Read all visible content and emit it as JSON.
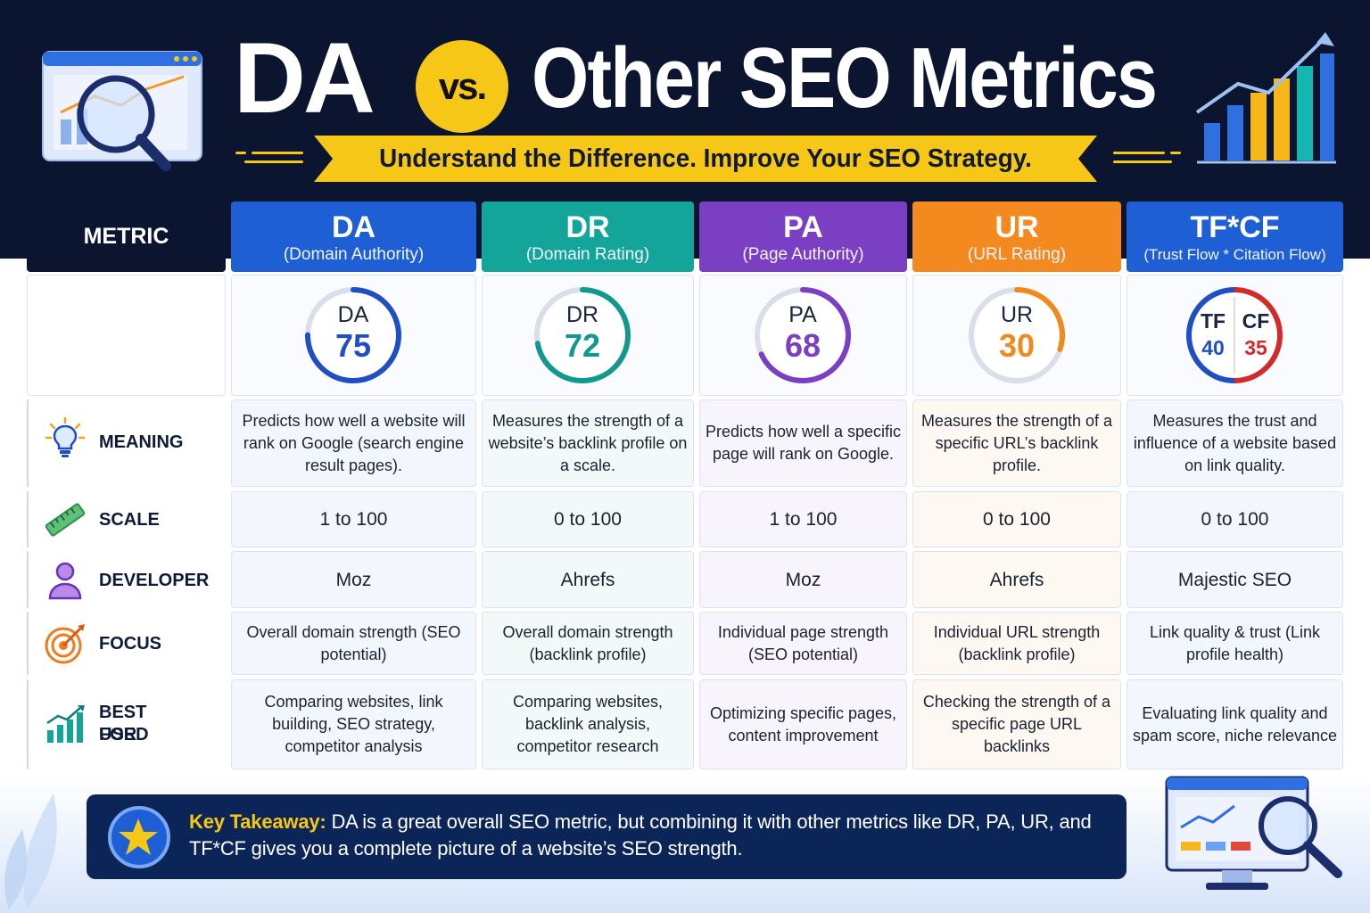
{
  "header": {
    "title_da": "DA",
    "title_vs": "vs.",
    "title_rest": "Other SEO Metrics",
    "subtitle": "Understand the Difference. Improve Your SEO Strategy."
  },
  "table": {
    "metric_header": "METRIC",
    "columns": [
      {
        "abbr": "DA",
        "full": "(Domain Authority)",
        "color": "#1f5fd6",
        "gauge_label": "DA",
        "gauge_value": "75",
        "gauge_color": "#1f4fc4"
      },
      {
        "abbr": "DR",
        "full": "(Domain Rating)",
        "color": "#13a59a",
        "gauge_label": "DR",
        "gauge_value": "72",
        "gauge_color": "#12998f"
      },
      {
        "abbr": "PA",
        "full": "(Page Authority)",
        "color": "#7b3fc3",
        "gauge_label": "PA",
        "gauge_value": "68",
        "gauge_color": "#7b3fc3"
      },
      {
        "abbr": "UR",
        "full": "(URL Rating)",
        "color": "#f48a1f",
        "gauge_label": "UR",
        "gauge_value": "30",
        "gauge_color": "#f08a1c"
      },
      {
        "abbr": "TF*CF",
        "full": "(Trust Flow * Citation Flow)",
        "color": "#1f5fd6",
        "tf_label": "TF",
        "tf_value": "40",
        "cf_label": "CF",
        "cf_value": "35",
        "tf_color": "#1f4fc4",
        "cf_color": "#d42a2a"
      }
    ],
    "rows": {
      "meaning": {
        "label": "MEANING",
        "cells": [
          "Predicts how well a website will rank on Google (search engine result pages).",
          "Measures the strength of a website’s backlink profile on a scale.",
          "Predicts how well a specific page will rank on Google.",
          "Measures the strength of a specific URL’s backlink profile.",
          "Measures the trust and influence of a website based on link quality."
        ]
      },
      "scale": {
        "label": "SCALE",
        "cells": [
          "1 to 100",
          "0 to 100",
          "1 to 100",
          "0 to 100",
          "0 to 100"
        ]
      },
      "developer": {
        "label": "DEVELOPER",
        "cells": [
          "Moz",
          "Ahrefs",
          "Moz",
          "Ahrefs",
          "Majestic SEO"
        ]
      },
      "focus": {
        "label": "FOCUS",
        "cells": [
          "Overall domain strength (SEO potential)",
          "Overall domain strength (backlink profile)",
          "Individual page strength (SEO potential)",
          "Individual URL strength (backlink profile)",
          "Link quality & trust (Link profile health)"
        ]
      },
      "best": {
        "label_1": "BEST USED",
        "label_2": "FOR",
        "cells": [
          "Comparing websites, link building, SEO strategy, competitor analysis",
          "Comparing websites, backlink analysis, competitor research",
          "Optimizing specific pages, content improvement",
          "Checking the strength of a specific page URL backlinks",
          "Evaluating link quality and spam score, niche relevance"
        ]
      }
    }
  },
  "takeaway": {
    "lead": "Key Takeaway:",
    "text": " DA is a great overall SEO metric, but combining it with other metrics like DR, PA, UR, and TF*CF gives you a complete picture of a website’s SEO strength."
  },
  "colors": {
    "navy": "#0b1530",
    "yellow": "#f6c716"
  },
  "icons": [
    "magnifier-browser-icon",
    "growth-chart-icon",
    "lightbulb-icon",
    "ruler-icon",
    "person-icon",
    "target-icon",
    "bar-chart-icon",
    "star-icon",
    "monitor-search-icon",
    "leaf-icon"
  ]
}
